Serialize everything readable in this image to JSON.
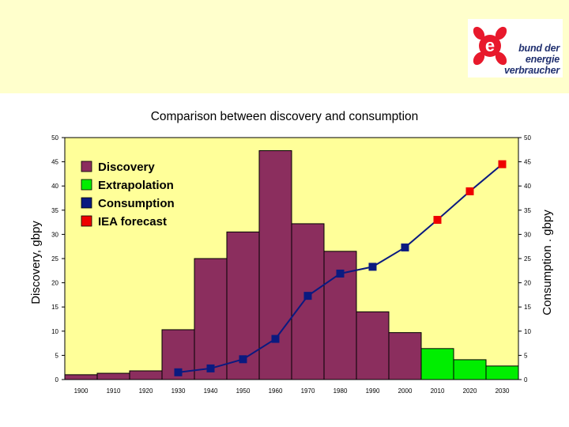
{
  "logo": {
    "line1": "bund der",
    "line2": "energie",
    "line3": "verbraucher"
  },
  "colors": {
    "band": "#ffffcc",
    "plot_bg": "#ffff99",
    "discovery": "#8b2e5e",
    "extrapolation": "#00ee00",
    "consumption": "#0a1a80",
    "iea": "#ee0000"
  },
  "chart_data": {
    "type": "bar",
    "title": "Comparison between discovery and consumption",
    "ylabel_left": "Discovery, gbpy",
    "ylabel_right": "Consumption . gbpy",
    "ylim": [
      0,
      50
    ],
    "yticks": [
      0,
      5,
      10,
      15,
      20,
      25,
      30,
      35,
      40,
      45,
      50
    ],
    "categories": [
      "1900",
      "1910",
      "1920",
      "1930",
      "1940",
      "1950",
      "1960",
      "1970",
      "1980",
      "1990",
      "2000",
      "2010",
      "2020",
      "2030"
    ],
    "legend_position": "top-left",
    "series": [
      {
        "name": "Discovery",
        "kind": "bar",
        "values": [
          1.0,
          1.3,
          1.8,
          10.3,
          25.0,
          30.5,
          47.3,
          32.2,
          26.5,
          14.0,
          9.7,
          null,
          null,
          null
        ]
      },
      {
        "name": "Extrapolation",
        "kind": "bar",
        "values": [
          null,
          null,
          null,
          null,
          null,
          null,
          null,
          null,
          null,
          null,
          null,
          6.4,
          4.1,
          2.8
        ]
      },
      {
        "name": "Consumption",
        "kind": "line",
        "values": [
          null,
          null,
          null,
          1.5,
          2.3,
          4.2,
          8.4,
          17.3,
          21.9,
          23.3,
          27.3,
          null,
          null,
          null
        ]
      },
      {
        "name": "IEA forecast",
        "kind": "line",
        "values": [
          null,
          null,
          null,
          null,
          null,
          null,
          null,
          null,
          null,
          null,
          27.3,
          33.0,
          38.9,
          44.5
        ]
      }
    ]
  }
}
